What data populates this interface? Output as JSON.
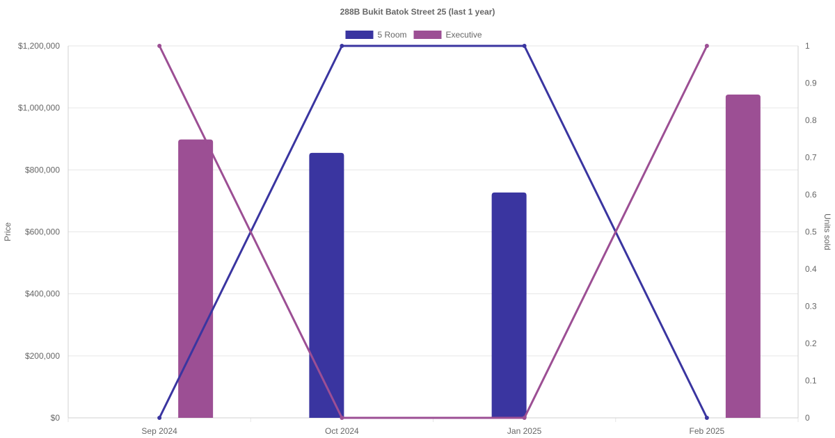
{
  "chart_data": {
    "type": "bar+line",
    "title": "288B Bukit Batok Street 25 (last 1 year)",
    "categories": [
      "Sep 2024",
      "Oct 2024",
      "Jan 2025",
      "Feb 2025"
    ],
    "y_left": {
      "label": "Price",
      "range": [
        0,
        1200000
      ],
      "ticks": [
        0,
        200000,
        400000,
        600000,
        800000,
        1000000,
        1200000
      ],
      "tick_labels": [
        "$0",
        "$200,000",
        "$400,000",
        "$600,000",
        "$800,000",
        "$1,000,000",
        "$1,200,000"
      ]
    },
    "y_right": {
      "label": "Units sold",
      "range": [
        0,
        1
      ],
      "ticks": [
        0,
        0.1,
        0.2,
        0.3,
        0.4,
        0.5,
        0.6,
        0.7,
        0.8,
        0.9,
        1
      ],
      "tick_labels": [
        "0",
        "0.1",
        "0.2",
        "0.3",
        "0.4",
        "0.5",
        "0.6",
        "0.7",
        "0.8",
        "0.9",
        "1"
      ]
    },
    "series": [
      {
        "name": "5 Room",
        "color": "#3a35a0",
        "price": [
          null,
          855000,
          727000,
          null
        ],
        "units_sold": [
          0,
          1,
          1,
          0
        ]
      },
      {
        "name": "Executive",
        "color": "#9c4f94",
        "price": [
          898000,
          null,
          null,
          1043000
        ],
        "units_sold": [
          1,
          0,
          0,
          1
        ]
      }
    ],
    "legend_position": "top",
    "grid": true
  }
}
